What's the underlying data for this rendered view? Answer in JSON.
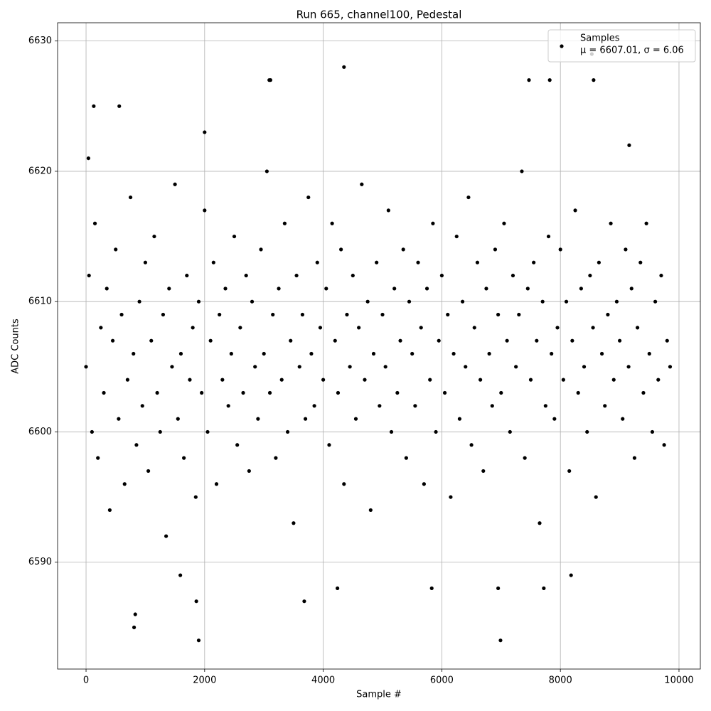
{
  "chart_data": {
    "type": "scatter",
    "title": "Run 665, channel100, Pedestal",
    "x_label": "Sample #",
    "y_label": "ADC Counts",
    "xlim": [
      -480,
      10360
    ],
    "ylim": [
      6581.8,
      6631.4
    ],
    "xticks": [
      0,
      2000,
      4000,
      6000,
      8000,
      10000
    ],
    "yticks": [
      6590,
      6600,
      6610,
      6620,
      6630
    ],
    "grid": true,
    "legend": "upper right",
    "legend_note": "μ = 6607.01, σ = 6.06",
    "series": [
      {
        "name": "Samples",
        "color": "#000000",
        "x": [
          0,
          50,
          100,
          150,
          200,
          250,
          300,
          350,
          400,
          450,
          500,
          550,
          600,
          650,
          700,
          750,
          800,
          850,
          900,
          950,
          1000,
          1050,
          1100,
          1150,
          1200,
          1250,
          1300,
          1350,
          1400,
          1450,
          1500,
          1550,
          1600,
          1650,
          1700,
          1750,
          1800,
          1850,
          1900,
          1950,
          2000,
          2050,
          2100,
          2150,
          2200,
          2250,
          2300,
          2350,
          2400,
          2450,
          2500,
          2550,
          2600,
          2650,
          2700,
          2750,
          2800,
          2850,
          2900,
          2950,
          3000,
          3050,
          3100,
          3150,
          3200,
          3250,
          3300,
          3350,
          3400,
          3450,
          3500,
          3550,
          3600,
          3650,
          3700,
          3750,
          3800,
          3850,
          3900,
          3950,
          4000,
          4050,
          4100,
          4150,
          4200,
          4250,
          4300,
          4350,
          4400,
          4450,
          4500,
          4550,
          4600,
          4650,
          4700,
          4750,
          4800,
          4850,
          4900,
          4950,
          5000,
          5050,
          5100,
          5150,
          5200,
          5250,
          5300,
          5350,
          5400,
          5450,
          5500,
          5550,
          5600,
          5650,
          5700,
          5750,
          5800,
          5850,
          5900,
          5950,
          6000,
          6050,
          6100,
          6150,
          6200,
          6250,
          6300,
          6350,
          6400,
          6450,
          6500,
          6550,
          6600,
          6650,
          6700,
          6750,
          6800,
          6850,
          6900,
          6950,
          7000,
          7050,
          7100,
          7150,
          7200,
          7250,
          7300,
          7350,
          7400,
          7450,
          7500,
          7550,
          7600,
          7650,
          7700,
          7750,
          7800,
          7850,
          7900,
          7950,
          8000,
          8050,
          8100,
          8150,
          8200,
          8250,
          8300,
          8350,
          8400,
          8450,
          8500,
          8550,
          8600,
          8650,
          8700,
          8750,
          8800,
          8850,
          8900,
          8950,
          9000,
          9050,
          9100,
          9150,
          9200,
          9250,
          9300,
          9350,
          9400,
          9450,
          9500,
          9550,
          9600,
          9650,
          9700,
          9750,
          9800,
          9850,
          130,
          560,
          810,
          830,
          1860,
          1900,
          3090,
          3110,
          4350,
          6990,
          6950,
          7470,
          8560,
          7820,
          4240,
          5830,
          7720,
          3680,
          8530,
          9160,
          1590,
          40,
          2000,
          8180
        ],
        "values": [
          6605,
          6612,
          6600,
          6616,
          6598,
          6608,
          6603,
          6611,
          6594,
          6607,
          6614,
          6601,
          6609,
          6596,
          6604,
          6618,
          6606,
          6599,
          6610,
          6602,
          6613,
          6597,
          6607,
          6615,
          6603,
          6600,
          6609,
          6592,
          6611,
          6605,
          6619,
          6601,
          6606,
          6598,
          6612,
          6604,
          6608,
          6595,
          6610,
          6603,
          6617,
          6600,
          6607,
          6613,
          6596,
          6609,
          6604,
          6611,
          6602,
          6606,
          6615,
          6599,
          6608,
          6603,
          6612,
          6597,
          6610,
          6605,
          6601,
          6614,
          6606,
          6620,
          6603,
          6609,
          6598,
          6611,
          6604,
          6616,
          6600,
          6607,
          6593,
          6612,
          6605,
          6609,
          6601,
          6618,
          6606,
          6602,
          6613,
          6608,
          6604,
          6611,
          6599,
          6616,
          6607,
          6603,
          6614,
          6596,
          6609,
          6605,
          6612,
          6601,
          6608,
          6619,
          6604,
          6610,
          6594,
          6606,
          6613,
          6602,
          6609,
          6605,
          6617,
          6600,
          6611,
          6603,
          6607,
          6614,
          6598,
          6610,
          6606,
          6602,
          6613,
          6608,
          6596,
          6611,
          6604,
          6616,
          6600,
          6607,
          6612,
          6603,
          6609,
          6595,
          6606,
          6615,
          6601,
          6610,
          6605,
          6618,
          6599,
          6608,
          6613,
          6604,
          6597,
          6611,
          6606,
          6602,
          6614,
          6609,
          6603,
          6616,
          6607,
          6600,
          6612,
          6605,
          6609,
          6620,
          6598,
          6611,
          6604,
          6613,
          6607,
          6593,
          6610,
          6602,
          6615,
          6606,
          6601,
          6608,
          6614,
          6604,
          6610,
          6597,
          6607,
          6617,
          6603,
          6611,
          6605,
          6600,
          6612,
          6608,
          6595,
          6613,
          6606,
          6602,
          6609,
          6616,
          6604,
          6610,
          6607,
          6601,
          6614,
          6605,
          6611,
          6598,
          6608,
          6613,
          6603,
          6616,
          6606,
          6600,
          6610,
          6604,
          6612,
          6599,
          6607,
          6605,
          6625,
          6625,
          6585,
          6586,
          6587,
          6584,
          6627,
          6627,
          6628,
          6584,
          6588,
          6627,
          6627,
          6627,
          6588,
          6588,
          6588,
          6587,
          6629,
          6622,
          6589,
          6621,
          6623,
          6589
        ]
      }
    ]
  }
}
